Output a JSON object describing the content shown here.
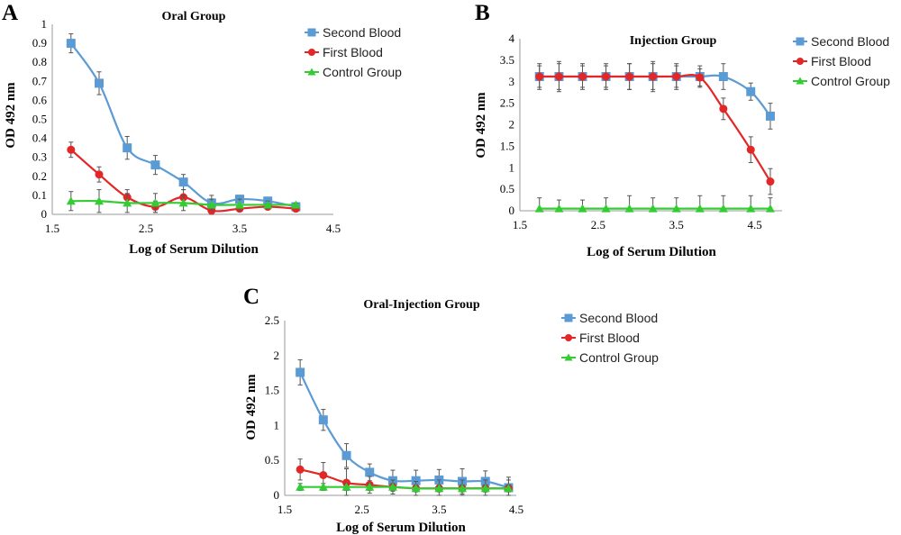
{
  "chart_data": [
    {
      "panel": "A",
      "type": "line",
      "title": "Oral Group",
      "xlabel": "Log of Serum Dilution",
      "ylabel": "OD 492 nm",
      "xlim": [
        1.5,
        4.5
      ],
      "ylim": [
        0,
        1
      ],
      "xticks": [
        "1.5",
        "2.5",
        "3.5",
        "4.5"
      ],
      "yticks": [
        "0",
        "0.1",
        "0.2",
        "0.3",
        "0.4",
        "0.5",
        "0.6",
        "0.7",
        "0.8",
        "0.9",
        "1"
      ],
      "grid": false,
      "legend_position": "top-right",
      "x": [
        1.7,
        2.0,
        2.3,
        2.6,
        2.9,
        3.2,
        3.5,
        3.8,
        4.1
      ],
      "series": [
        {
          "name": "Second Blood",
          "color": "#5b9bd5",
          "marker": "square",
          "values": [
            0.9,
            0.69,
            0.35,
            0.26,
            0.17,
            0.06,
            0.08,
            0.07,
            0.04
          ],
          "errors": [
            0.05,
            0.06,
            0.06,
            0.05,
            0.04,
            0.04,
            0.02,
            0.02,
            0.01
          ]
        },
        {
          "name": "First Blood",
          "color": "#e32626",
          "marker": "circle",
          "values": [
            0.34,
            0.21,
            0.09,
            0.04,
            0.09,
            0.02,
            0.03,
            0.04,
            0.03
          ],
          "errors": [
            0.04,
            0.04,
            0.04,
            0.03,
            0.04,
            0.02,
            0.01,
            0.01,
            0.01
          ]
        },
        {
          "name": "Control Group",
          "color": "#33cc33",
          "marker": "triangle",
          "values": [
            0.07,
            0.07,
            0.06,
            0.06,
            0.06,
            0.05,
            0.05,
            0.05,
            0.05
          ],
          "errors": [
            0.05,
            0.06,
            0.05,
            0.05,
            0.04,
            0.03,
            0.03,
            0.02,
            0.01
          ]
        }
      ]
    },
    {
      "panel": "B",
      "type": "line",
      "title": "Injection Group",
      "xlabel": "Log of Serum Dilution",
      "ylabel": "OD 492 nm",
      "xlim": [
        1.5,
        4.85
      ],
      "ylim": [
        0,
        4
      ],
      "xticks": [
        "1.5",
        "2.5",
        "3.5",
        "4.5"
      ],
      "yticks": [
        "0",
        "0.5",
        "1",
        "1.5",
        "2",
        "2.5",
        "3",
        "3.5",
        "4"
      ],
      "grid": false,
      "legend_position": "top-right",
      "x": [
        1.75,
        2.0,
        2.3,
        2.6,
        2.9,
        3.2,
        3.5,
        3.8,
        4.1,
        4.45,
        4.7
      ],
      "series": [
        {
          "name": "Second Blood",
          "color": "#5b9bd5",
          "marker": "square",
          "values": [
            3.12,
            3.12,
            3.12,
            3.12,
            3.12,
            3.12,
            3.12,
            3.12,
            3.12,
            2.77,
            2.2
          ],
          "errors": [
            0.3,
            0.35,
            0.3,
            0.3,
            0.3,
            0.35,
            0.3,
            0.25,
            0.3,
            0.2,
            0.3
          ]
        },
        {
          "name": "First Blood",
          "color": "#e32626",
          "marker": "circle",
          "values": [
            3.12,
            3.12,
            3.12,
            3.12,
            3.12,
            3.12,
            3.12,
            3.1,
            2.37,
            1.42,
            0.68
          ],
          "errors": [
            0.25,
            0.3,
            0.25,
            0.25,
            0.3,
            0.3,
            0.25,
            0.2,
            0.25,
            0.3,
            0.3
          ]
        },
        {
          "name": "Control Group",
          "color": "#33cc33",
          "marker": "triangle",
          "values": [
            0.05,
            0.05,
            0.05,
            0.05,
            0.05,
            0.05,
            0.05,
            0.05,
            0.05,
            0.05,
            0.05
          ],
          "errors": [
            0.25,
            0.2,
            0.2,
            0.25,
            0.3,
            0.25,
            0.25,
            0.3,
            0.3,
            0.3,
            0.25
          ]
        }
      ]
    },
    {
      "panel": "C",
      "type": "line",
      "title": "Oral-Injection Group",
      "xlabel": "Log of Serum Dilution",
      "ylabel": "OD 492 nm",
      "xlim": [
        1.5,
        4.5
      ],
      "ylim": [
        0,
        2.5
      ],
      "xticks": [
        "1.5",
        "2.5",
        "3.5",
        "4.5"
      ],
      "yticks": [
        "0",
        "0.5",
        "1",
        "1.5",
        "2",
        "2.5"
      ],
      "grid": false,
      "legend_position": "top-right",
      "x": [
        1.7,
        2.0,
        2.3,
        2.6,
        2.9,
        3.2,
        3.5,
        3.8,
        4.1,
        4.4
      ],
      "series": [
        {
          "name": "Second Blood",
          "color": "#5b9bd5",
          "marker": "square",
          "values": [
            1.76,
            1.08,
            0.57,
            0.33,
            0.21,
            0.21,
            0.22,
            0.2,
            0.2,
            0.11
          ],
          "errors": [
            0.18,
            0.15,
            0.17,
            0.12,
            0.15,
            0.15,
            0.15,
            0.18,
            0.15,
            0.15
          ]
        },
        {
          "name": "First Blood",
          "color": "#e32626",
          "marker": "circle",
          "values": [
            0.37,
            0.29,
            0.18,
            0.15,
            0.12,
            0.1,
            0.1,
            0.1,
            0.1,
            0.1
          ],
          "errors": [
            0.15,
            0.18,
            0.2,
            0.12,
            0.1,
            0.1,
            0.12,
            0.12,
            0.12,
            0.12
          ]
        },
        {
          "name": "Control Group",
          "color": "#33cc33",
          "marker": "triangle",
          "values": [
            0.12,
            0.12,
            0.12,
            0.12,
            0.12,
            0.1,
            0.1,
            0.1,
            0.1,
            0.1
          ],
          "errors": [
            0.05,
            0.05,
            0.05,
            0.05,
            0.05,
            0.05,
            0.05,
            0.05,
            0.05,
            0.05
          ]
        }
      ]
    }
  ]
}
